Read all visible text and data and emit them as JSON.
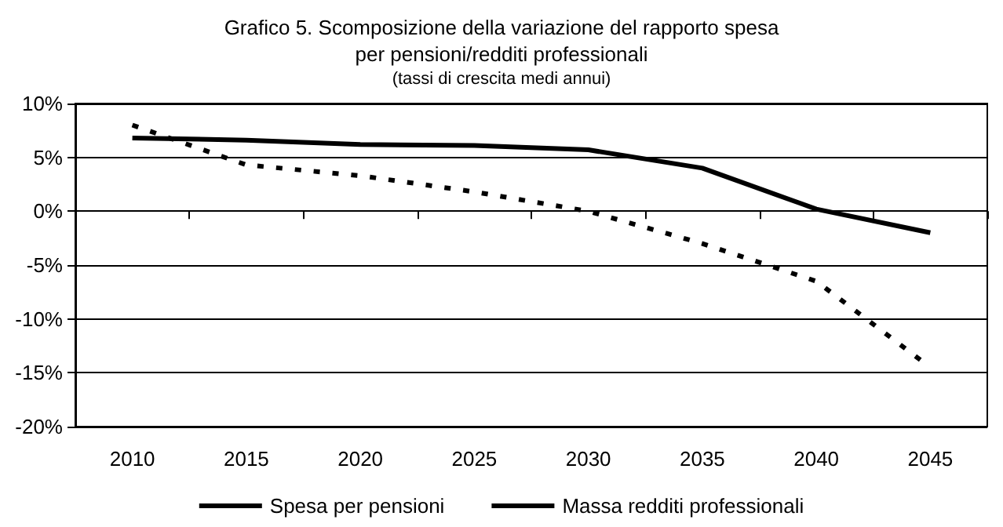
{
  "chart_data": {
    "type": "line",
    "title": "Grafico 5. Scomposizione della variazione del rapporto spesa\nper pensioni/redditi professionali",
    "subtitle": "(tassi di crescita medi annui)",
    "categories": [
      "2010",
      "2015",
      "2020",
      "2025",
      "2030",
      "2035",
      "2040",
      "2045"
    ],
    "series": [
      {
        "name": "Spesa per pensioni",
        "color": "#000000",
        "line_style": "solid",
        "values": [
          6.8,
          6.6,
          6.2,
          6.1,
          5.7,
          4.0,
          0.2,
          -2.0
        ]
      },
      {
        "name": "Massa redditi professionali",
        "color": "#000000",
        "line_style": "dashed",
        "values": [
          8.0,
          4.3,
          3.3,
          1.8,
          0.0,
          -3.0,
          -6.5,
          -14.5
        ]
      }
    ],
    "ylim": [
      -20,
      10
    ],
    "yticks": [
      {
        "value": -20,
        "label": "-20%"
      },
      {
        "value": -15,
        "label": "-15%"
      },
      {
        "value": -10,
        "label": "-10%"
      },
      {
        "value": -5,
        "label": "-5%"
      },
      {
        "value": 0,
        "label": "0%"
      },
      {
        "value": 5,
        "label": "5%"
      },
      {
        "value": 10,
        "label": "10%"
      }
    ],
    "grid": "y",
    "legend": "bottom",
    "marker": "none"
  }
}
